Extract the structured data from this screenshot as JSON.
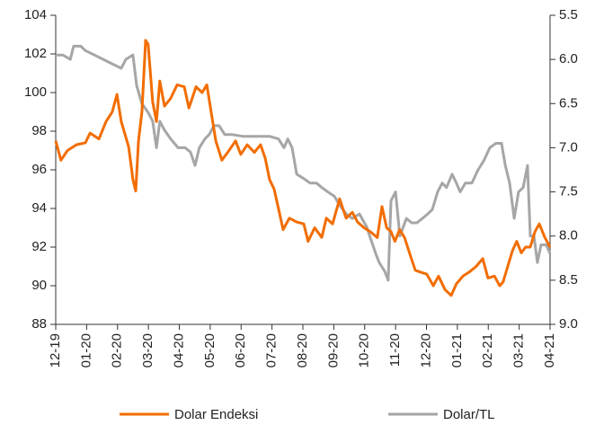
{
  "chart_data": {
    "type": "line",
    "xlim": [
      0,
      16
    ],
    "xticks": [
      {
        "value": 0,
        "label": "12-19"
      },
      {
        "value": 1,
        "label": "01-20"
      },
      {
        "value": 2,
        "label": "02-20"
      },
      {
        "value": 3,
        "label": "03-20"
      },
      {
        "value": 4,
        "label": "04-20"
      },
      {
        "value": 5,
        "label": "05-20"
      },
      {
        "value": 6,
        "label": "06-20"
      },
      {
        "value": 7,
        "label": "07-20"
      },
      {
        "value": 8,
        "label": "08-20"
      },
      {
        "value": 9,
        "label": "09-20"
      },
      {
        "value": 10,
        "label": "10-20"
      },
      {
        "value": 11,
        "label": "11-20"
      },
      {
        "value": 12,
        "label": "12-20"
      },
      {
        "value": 13,
        "label": "01-21"
      },
      {
        "value": 14,
        "label": "02-21"
      },
      {
        "value": 15,
        "label": "03-21"
      },
      {
        "value": 16,
        "label": "04-21"
      }
    ],
    "ylim": [
      88,
      104
    ],
    "yticks": [
      88,
      90,
      92,
      94,
      96,
      98,
      100,
      102,
      104
    ],
    "y2lim": [
      9,
      5.5
    ],
    "y2ticks": [
      {
        "value": 9,
        "label": "9.0"
      },
      8.5,
      {
        "value": 8,
        "label": "8.0"
      },
      7.5,
      {
        "value": 7,
        "label": "7.0"
      },
      6.5,
      {
        "value": 6,
        "label": "6.0"
      },
      5.5
    ],
    "legend": "bottom",
    "series": [
      {
        "name": "Dolar Endeksi",
        "color": "#f26d00",
        "x": [
          0,
          0.17,
          0.38,
          0.67,
          0.96,
          1.11,
          1.4,
          1.63,
          1.83,
          1.98,
          2.12,
          2.36,
          2.5,
          2.59,
          2.68,
          2.79,
          2.91,
          2.99,
          3.14,
          3.26,
          3.37,
          3.52,
          3.72,
          3.93,
          4.16,
          4.31,
          4.54,
          4.74,
          4.89,
          5.03,
          5.18,
          5.38,
          5.61,
          5.82,
          5.99,
          6.2,
          6.43,
          6.63,
          6.78,
          6.92,
          7.07,
          7.21,
          7.36,
          7.56,
          7.8,
          8.03,
          8.17,
          8.38,
          8.61,
          8.76,
          8.96,
          9.19,
          9.4,
          9.6,
          9.77,
          9.98,
          10.18,
          10.41,
          10.56,
          10.71,
          10.85,
          10.98,
          11.13,
          11.29,
          11.49,
          11.64,
          11.81,
          12.01,
          12.22,
          12.39,
          12.6,
          12.8,
          12.97,
          13.18,
          13.38,
          13.61,
          13.82,
          13.99,
          14.2,
          14.37,
          14.48,
          14.63,
          14.78,
          14.92,
          15.07,
          15.21,
          15.36,
          15.51,
          15.65,
          15.83,
          16
        ],
        "values": [
          97.5,
          96.5,
          97.0,
          97.3,
          97.4,
          97.9,
          97.6,
          98.5,
          99.0,
          99.9,
          98.5,
          97.2,
          95.5,
          94.9,
          97.5,
          99.0,
          102.7,
          102.5,
          99.5,
          98.5,
          100.6,
          99.3,
          99.7,
          100.4,
          100.3,
          99.2,
          100.3,
          100.0,
          100.4,
          99.0,
          97.5,
          96.5,
          97.0,
          97.5,
          96.8,
          97.3,
          96.9,
          97.3,
          96.6,
          95.5,
          95.0,
          94.0,
          92.9,
          93.5,
          93.3,
          93.2,
          92.3,
          93.0,
          92.5,
          93.5,
          93.2,
          94.5,
          93.5,
          93.8,
          93.3,
          93.0,
          92.8,
          92.5,
          94.1,
          93.0,
          92.8,
          92.3,
          92.9,
          92.5,
          91.5,
          90.8,
          90.7,
          90.6,
          90.0,
          90.5,
          89.8,
          89.5,
          90.1,
          90.5,
          90.7,
          91.0,
          91.4,
          90.4,
          90.5,
          90.0,
          90.2,
          91.0,
          91.8,
          92.3,
          91.7,
          92.0,
          92.0,
          92.8,
          93.2,
          92.5,
          92.0
        ]
      },
      {
        "name": "Dolar/TL",
        "color": "#a6a6a6",
        "axis": "y2",
        "x": [
          0,
          0.23,
          0.47,
          0.58,
          0.81,
          0.96,
          1.25,
          1.54,
          1.83,
          2.12,
          2.27,
          2.5,
          2.62,
          2.79,
          2.99,
          3.14,
          3.26,
          3.37,
          3.52,
          3.72,
          3.96,
          4.19,
          4.36,
          4.51,
          4.65,
          4.83,
          4.97,
          5.12,
          5.29,
          5.47,
          5.7,
          6.05,
          6.43,
          6.92,
          7.21,
          7.39,
          7.51,
          7.65,
          7.8,
          8.03,
          8.23,
          8.44,
          8.61,
          8.81,
          9.02,
          9.19,
          9.4,
          9.6,
          9.83,
          10.07,
          10.21,
          10.36,
          10.47,
          10.65,
          10.76,
          10.85,
          11.0,
          11.14,
          11.35,
          11.52,
          11.69,
          11.87,
          12.04,
          12.19,
          12.36,
          12.51,
          12.65,
          12.83,
          12.97,
          13.09,
          13.26,
          13.47,
          13.67,
          13.85,
          14.05,
          14.25,
          14.43,
          14.55,
          14.69,
          14.84,
          14.98,
          15.13,
          15.27,
          15.36,
          15.48,
          15.59,
          15.71,
          15.88,
          16
        ],
        "values": [
          5.95,
          5.95,
          6.0,
          5.85,
          5.85,
          5.9,
          5.95,
          6.0,
          6.05,
          6.1,
          6.0,
          5.95,
          6.3,
          6.5,
          6.6,
          6.7,
          7.0,
          6.7,
          6.8,
          6.9,
          7.0,
          7.0,
          7.05,
          7.2,
          7.0,
          6.9,
          6.85,
          6.75,
          6.75,
          6.85,
          6.85,
          6.87,
          6.87,
          6.87,
          6.9,
          7.0,
          6.9,
          7.0,
          7.3,
          7.35,
          7.4,
          7.4,
          7.45,
          7.5,
          7.55,
          7.65,
          7.75,
          7.8,
          7.75,
          7.9,
          8.05,
          8.2,
          8.3,
          8.4,
          8.5,
          7.6,
          7.5,
          8.0,
          7.8,
          7.85,
          7.85,
          7.8,
          7.75,
          7.7,
          7.5,
          7.4,
          7.45,
          7.3,
          7.4,
          7.5,
          7.4,
          7.4,
          7.25,
          7.15,
          7.0,
          6.95,
          6.95,
          7.2,
          7.4,
          7.8,
          7.5,
          7.45,
          7.2,
          8.0,
          8.0,
          8.3,
          8.1,
          8.1,
          8.2
        ]
      }
    ]
  }
}
